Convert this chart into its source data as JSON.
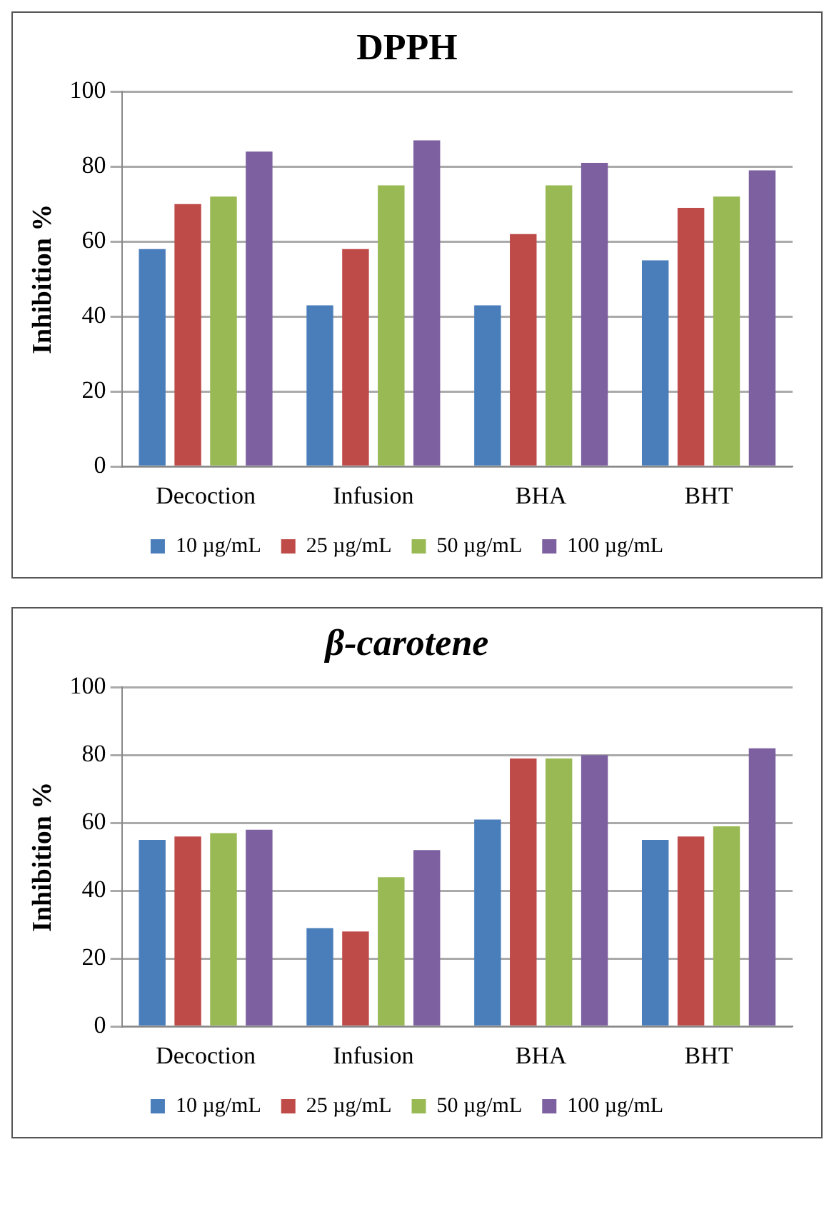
{
  "chart_data": [
    {
      "type": "bar",
      "title": "DPPH",
      "ylabel": "Inhibition %",
      "categories": [
        "Decoction",
        "Infusion",
        "BHA",
        "BHT"
      ],
      "ylim": [
        0,
        100
      ],
      "yticks": [
        0,
        20,
        40,
        60,
        80,
        100
      ],
      "grid": "y",
      "legend": "bottom",
      "series": [
        {
          "name": "10 µg/mL",
          "color": "#4a7ebb",
          "values": [
            58,
            43,
            43,
            55
          ]
        },
        {
          "name": "25 µg/mL",
          "color": "#be4b48",
          "values": [
            70,
            58,
            62,
            69
          ]
        },
        {
          "name": "50 µg/mL",
          "color": "#98b954",
          "values": [
            72,
            75,
            75,
            72
          ]
        },
        {
          "name": "100 µg/mL",
          "color": "#7d60a0",
          "values": [
            84,
            87,
            81,
            79
          ]
        }
      ]
    },
    {
      "type": "bar",
      "title": "β-carotene",
      "ylabel": "Inhibition %",
      "categories": [
        "Decoction",
        "Infusion",
        "BHA",
        "BHT"
      ],
      "ylim": [
        0,
        100
      ],
      "yticks": [
        0,
        20,
        40,
        60,
        80,
        100
      ],
      "grid": "y",
      "legend": "bottom",
      "series": [
        {
          "name": "10 µg/mL",
          "color": "#4a7ebb",
          "values": [
            55,
            29,
            61,
            55
          ]
        },
        {
          "name": "25 µg/mL",
          "color": "#be4b48",
          "values": [
            56,
            28,
            79,
            56
          ]
        },
        {
          "name": "50 µg/mL",
          "color": "#98b954",
          "values": [
            57,
            44,
            79,
            59
          ]
        },
        {
          "name": "100 µg/mL",
          "color": "#7d60a0",
          "values": [
            58,
            52,
            80,
            82
          ]
        }
      ]
    }
  ]
}
